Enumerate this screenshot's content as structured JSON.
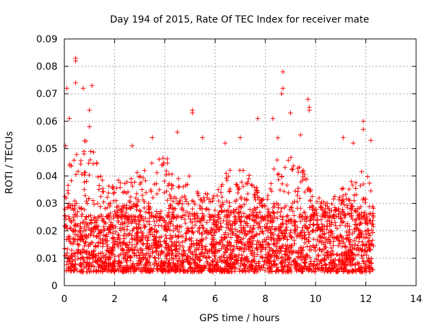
{
  "chart_data": {
    "type": "scatter",
    "title": "Day 194 of 2015, Rate Of TEC Index for receiver mate",
    "xlabel": "GPS time / hours",
    "ylabel": "ROTI / TECUs",
    "xlim": [
      0,
      14
    ],
    "ylim": [
      0,
      0.09
    ],
    "x_ticks": [
      "0",
      "2",
      "4",
      "6",
      "8",
      "10",
      "12",
      "14"
    ],
    "y_ticks": [
      "0",
      "0.01",
      "0.02",
      "0.03",
      "0.04",
      "0.05",
      "0.06",
      "0.07",
      "0.08",
      "0.09"
    ],
    "grid": true,
    "marker": "+",
    "marker_color": "#ff0000",
    "data_span_hours": [
      0,
      12.3
    ],
    "baseline_range": [
      0.005,
      0.025
    ],
    "notable_points": [
      {
        "x": 0.45,
        "y": 0.083
      },
      {
        "x": 0.45,
        "y": 0.082
      },
      {
        "x": 0.1,
        "y": 0.072
      },
      {
        "x": 0.45,
        "y": 0.074
      },
      {
        "x": 0.75,
        "y": 0.072
      },
      {
        "x": 1.1,
        "y": 0.073
      },
      {
        "x": 1.0,
        "y": 0.064
      },
      {
        "x": 5.1,
        "y": 0.064
      },
      {
        "x": 5.1,
        "y": 0.063
      },
      {
        "x": 7.7,
        "y": 0.061
      },
      {
        "x": 8.7,
        "y": 0.078
      },
      {
        "x": 8.7,
        "y": 0.072
      },
      {
        "x": 8.65,
        "y": 0.07
      },
      {
        "x": 9.7,
        "y": 0.068
      },
      {
        "x": 9.75,
        "y": 0.065
      },
      {
        "x": 9.75,
        "y": 0.064
      },
      {
        "x": 9.0,
        "y": 0.063
      },
      {
        "x": 11.9,
        "y": 0.06
      },
      {
        "x": 11.9,
        "y": 0.057
      },
      {
        "x": 12.2,
        "y": 0.053
      },
      {
        "x": 0.05,
        "y": 0.051
      },
      {
        "x": 0.2,
        "y": 0.061
      },
      {
        "x": 1.0,
        "y": 0.058
      },
      {
        "x": 2.7,
        "y": 0.051
      },
      {
        "x": 3.5,
        "y": 0.054
      },
      {
        "x": 4.5,
        "y": 0.056
      },
      {
        "x": 5.5,
        "y": 0.054
      },
      {
        "x": 6.4,
        "y": 0.052
      },
      {
        "x": 7.0,
        "y": 0.054
      },
      {
        "x": 8.3,
        "y": 0.061
      },
      {
        "x": 9.4,
        "y": 0.055
      },
      {
        "x": 11.1,
        "y": 0.054
      },
      {
        "x": 11.5,
        "y": 0.052
      }
    ],
    "envelope": [
      {
        "x": 0.0,
        "y": 0.04
      },
      {
        "x": 0.5,
        "y": 0.05
      },
      {
        "x": 1.0,
        "y": 0.055
      },
      {
        "x": 1.5,
        "y": 0.04
      },
      {
        "x": 2.0,
        "y": 0.038
      },
      {
        "x": 2.5,
        "y": 0.04
      },
      {
        "x": 3.0,
        "y": 0.042
      },
      {
        "x": 3.5,
        "y": 0.045
      },
      {
        "x": 4.0,
        "y": 0.047
      },
      {
        "x": 4.5,
        "y": 0.045
      },
      {
        "x": 5.0,
        "y": 0.04
      },
      {
        "x": 5.5,
        "y": 0.035
      },
      {
        "x": 6.0,
        "y": 0.033
      },
      {
        "x": 6.5,
        "y": 0.042
      },
      {
        "x": 7.0,
        "y": 0.043
      },
      {
        "x": 7.5,
        "y": 0.04
      },
      {
        "x": 8.0,
        "y": 0.03
      },
      {
        "x": 8.5,
        "y": 0.055
      },
      {
        "x": 9.0,
        "y": 0.048
      },
      {
        "x": 9.5,
        "y": 0.043
      },
      {
        "x": 10.0,
        "y": 0.033
      },
      {
        "x": 10.5,
        "y": 0.03
      },
      {
        "x": 11.0,
        "y": 0.035
      },
      {
        "x": 11.5,
        "y": 0.04
      },
      {
        "x": 12.0,
        "y": 0.045
      },
      {
        "x": 12.3,
        "y": 0.035
      }
    ]
  }
}
